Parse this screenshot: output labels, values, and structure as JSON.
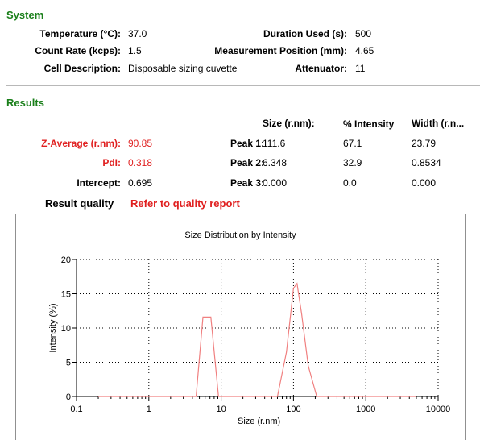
{
  "system": {
    "title": "System",
    "temperature_label": "Temperature (°C):",
    "temperature_value": "37.0",
    "duration_label": "Duration Used (s):",
    "duration_value": "500",
    "count_rate_label": "Count Rate (kcps):",
    "count_rate_value": "1.5",
    "position_label": "Measurement Position (mm):",
    "position_value": "4.65",
    "cell_label": "Cell Description:",
    "cell_value": "Disposable sizing cuvette",
    "attenuator_label": "Attenuator:",
    "attenuator_value": "11"
  },
  "results": {
    "title": "Results",
    "headers": {
      "size": "Size (r.nm):",
      "intensity": "% Intensity",
      "width": "Width (r.n..."
    },
    "zaverage_label": "Z-Average (r.nm):",
    "zaverage_value": "90.85",
    "pdi_label": "PdI:",
    "pdi_value": "0.318",
    "intercept_label": "Intercept:",
    "intercept_value": "0.695",
    "peaks": [
      {
        "label": "Peak 1:",
        "size": "111.6",
        "intensity": "67.1",
        "width": "23.79"
      },
      {
        "label": "Peak 2:",
        "size": "6.348",
        "intensity": "32.9",
        "width": "0.8534"
      },
      {
        "label": "Peak 3:",
        "size": "0.000",
        "intensity": "0.0",
        "width": "0.000"
      }
    ],
    "quality_label": "Result quality",
    "quality_value": "Refer to quality report"
  },
  "colors": {
    "section": "#1a7f1a",
    "warning": "#e02020",
    "curve": "#f08080",
    "grid": "#000000"
  },
  "chart_data": {
    "type": "line",
    "title": "Size Distribution by Intensity",
    "xlabel": "Size (r.nm)",
    "ylabel": "Intensity (%)",
    "xscale": "log",
    "xlim": [
      0.1,
      10000
    ],
    "ylim": [
      0,
      20
    ],
    "xticks": [
      0.1,
      1,
      10,
      100,
      1000,
      10000
    ],
    "xtick_labels": [
      "0.1",
      "1",
      "10",
      "100",
      "1000",
      "10000"
    ],
    "yticks": [
      0,
      5,
      10,
      15,
      20
    ],
    "ytick_labels": [
      "0",
      "5",
      "10",
      "15",
      "20"
    ],
    "grid": true,
    "series": [
      {
        "x": [
          0.2,
          4.5,
          5.6,
          7.2,
          9.2,
          60,
          80,
          100,
          112,
          130,
          160,
          210,
          5000
        ],
        "y": [
          0,
          0,
          11.6,
          11.6,
          0,
          0,
          6.5,
          15.8,
          16.5,
          12,
          4.5,
          0,
          0
        ]
      }
    ]
  }
}
